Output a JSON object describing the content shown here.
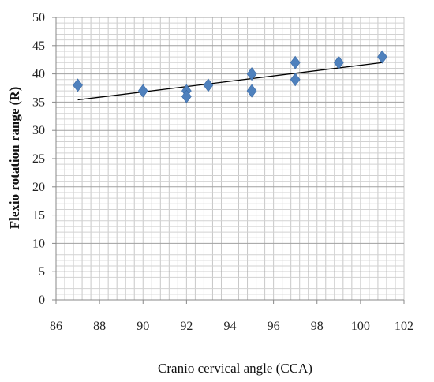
{
  "chart_data": {
    "type": "scatter",
    "xlabel": "Cranio cervical angle (CCA)",
    "ylabel": "Flexio rotation range (R)",
    "xlim": [
      86,
      102
    ],
    "ylim": [
      0,
      50
    ],
    "x_ticks": [
      "86",
      "88",
      "90",
      "92",
      "94",
      "96",
      "98",
      "100",
      "102"
    ],
    "y_ticks": [
      "0",
      "5",
      "10",
      "15",
      "20",
      "25",
      "30",
      "35",
      "40",
      "45",
      "50"
    ],
    "grid": true,
    "marker": "diamond",
    "marker_color": "#4f81bd",
    "points": [
      {
        "x": 87,
        "y": 38
      },
      {
        "x": 90,
        "y": 37
      },
      {
        "x": 92,
        "y": 37
      },
      {
        "x": 92,
        "y": 36
      },
      {
        "x": 93,
        "y": 38
      },
      {
        "x": 95,
        "y": 40
      },
      {
        "x": 95,
        "y": 37
      },
      {
        "x": 97,
        "y": 42
      },
      {
        "x": 97,
        "y": 39
      },
      {
        "x": 99,
        "y": 42
      },
      {
        "x": 101,
        "y": 43
      }
    ],
    "trendline": {
      "type": "linear",
      "x": [
        87,
        101
      ],
      "y": [
        35.4,
        42.0
      ],
      "color": "#000000"
    }
  }
}
